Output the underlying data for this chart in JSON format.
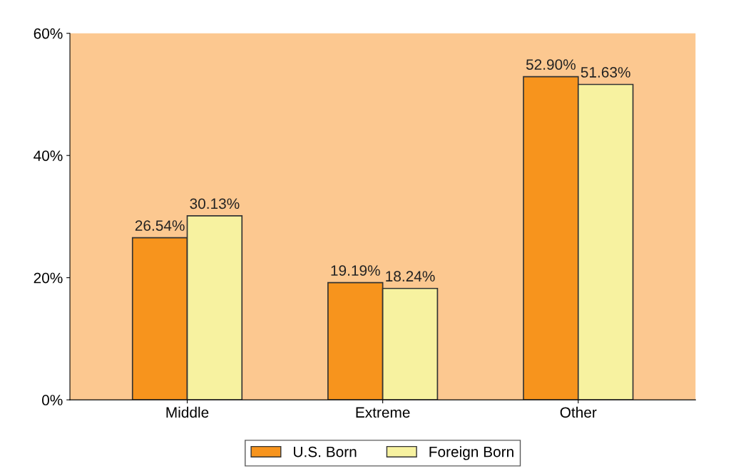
{
  "chart_data": {
    "type": "bar",
    "categories": [
      "Middle",
      "Extreme",
      "Other"
    ],
    "series": [
      {
        "name": "U.S. Born",
        "color": "#f7941d",
        "values": [
          26.54,
          19.19,
          52.9
        ],
        "value_labels": [
          "26.54%",
          "19.19%",
          "52.90%"
        ]
      },
      {
        "name": "Foreign Born",
        "color": "#f7f2a0",
        "values": [
          30.13,
          18.24,
          51.63
        ],
        "value_labels": [
          "30.13%",
          "18.24%",
          "51.63%"
        ]
      }
    ],
    "ylim": [
      0,
      60
    ],
    "yticks": [
      {
        "value": 0,
        "label": "0%"
      },
      {
        "value": 20,
        "label": "20%"
      },
      {
        "value": 40,
        "label": "40%"
      },
      {
        "value": 60,
        "label": "60%"
      }
    ],
    "grid": false,
    "legend": "bottom"
  }
}
